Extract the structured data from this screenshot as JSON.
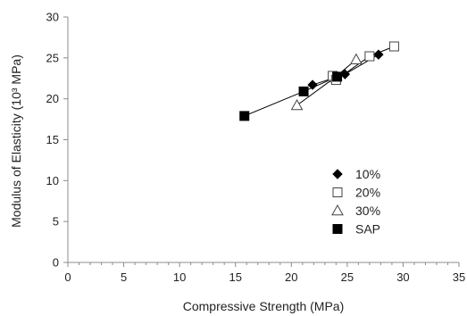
{
  "chart_data": {
    "type": "scatter",
    "xlabel": "Compressive Strength (MPa)",
    "ylabel": "Modulus of Elasticity (10³ MPa)",
    "xlim": [
      0,
      35
    ],
    "ylim": [
      0,
      30
    ],
    "x_ticks": [
      "0",
      "5",
      "10",
      "15",
      "20",
      "25",
      "30",
      "35"
    ],
    "y_ticks": [
      "0",
      "5",
      "10",
      "15",
      "20",
      "25",
      "30"
    ],
    "grid": false,
    "legend_position": "lower-right",
    "series": [
      {
        "name": "10%",
        "marker": "diamond-filled",
        "color": "#000000",
        "connected": true,
        "points": [
          [
            21.9,
            21.7
          ],
          [
            24.8,
            23.0
          ],
          [
            27.8,
            25.4
          ]
        ]
      },
      {
        "name": "20%",
        "marker": "square-open",
        "color": "#000000",
        "connected": true,
        "points": [
          [
            23.7,
            22.8
          ],
          [
            24.0,
            22.3
          ],
          [
            27.0,
            25.2
          ],
          [
            29.2,
            26.4
          ]
        ]
      },
      {
        "name": "30%",
        "marker": "triangle-open",
        "color": "#000000",
        "connected": true,
        "points": [
          [
            20.5,
            19.2
          ],
          [
            23.9,
            22.6
          ],
          [
            25.8,
            24.8
          ]
        ]
      },
      {
        "name": "SAP",
        "marker": "square-filled",
        "color": "#000000",
        "connected": true,
        "points": [
          [
            15.8,
            17.9
          ],
          [
            21.1,
            20.9
          ],
          [
            24.1,
            22.7
          ]
        ]
      }
    ]
  }
}
